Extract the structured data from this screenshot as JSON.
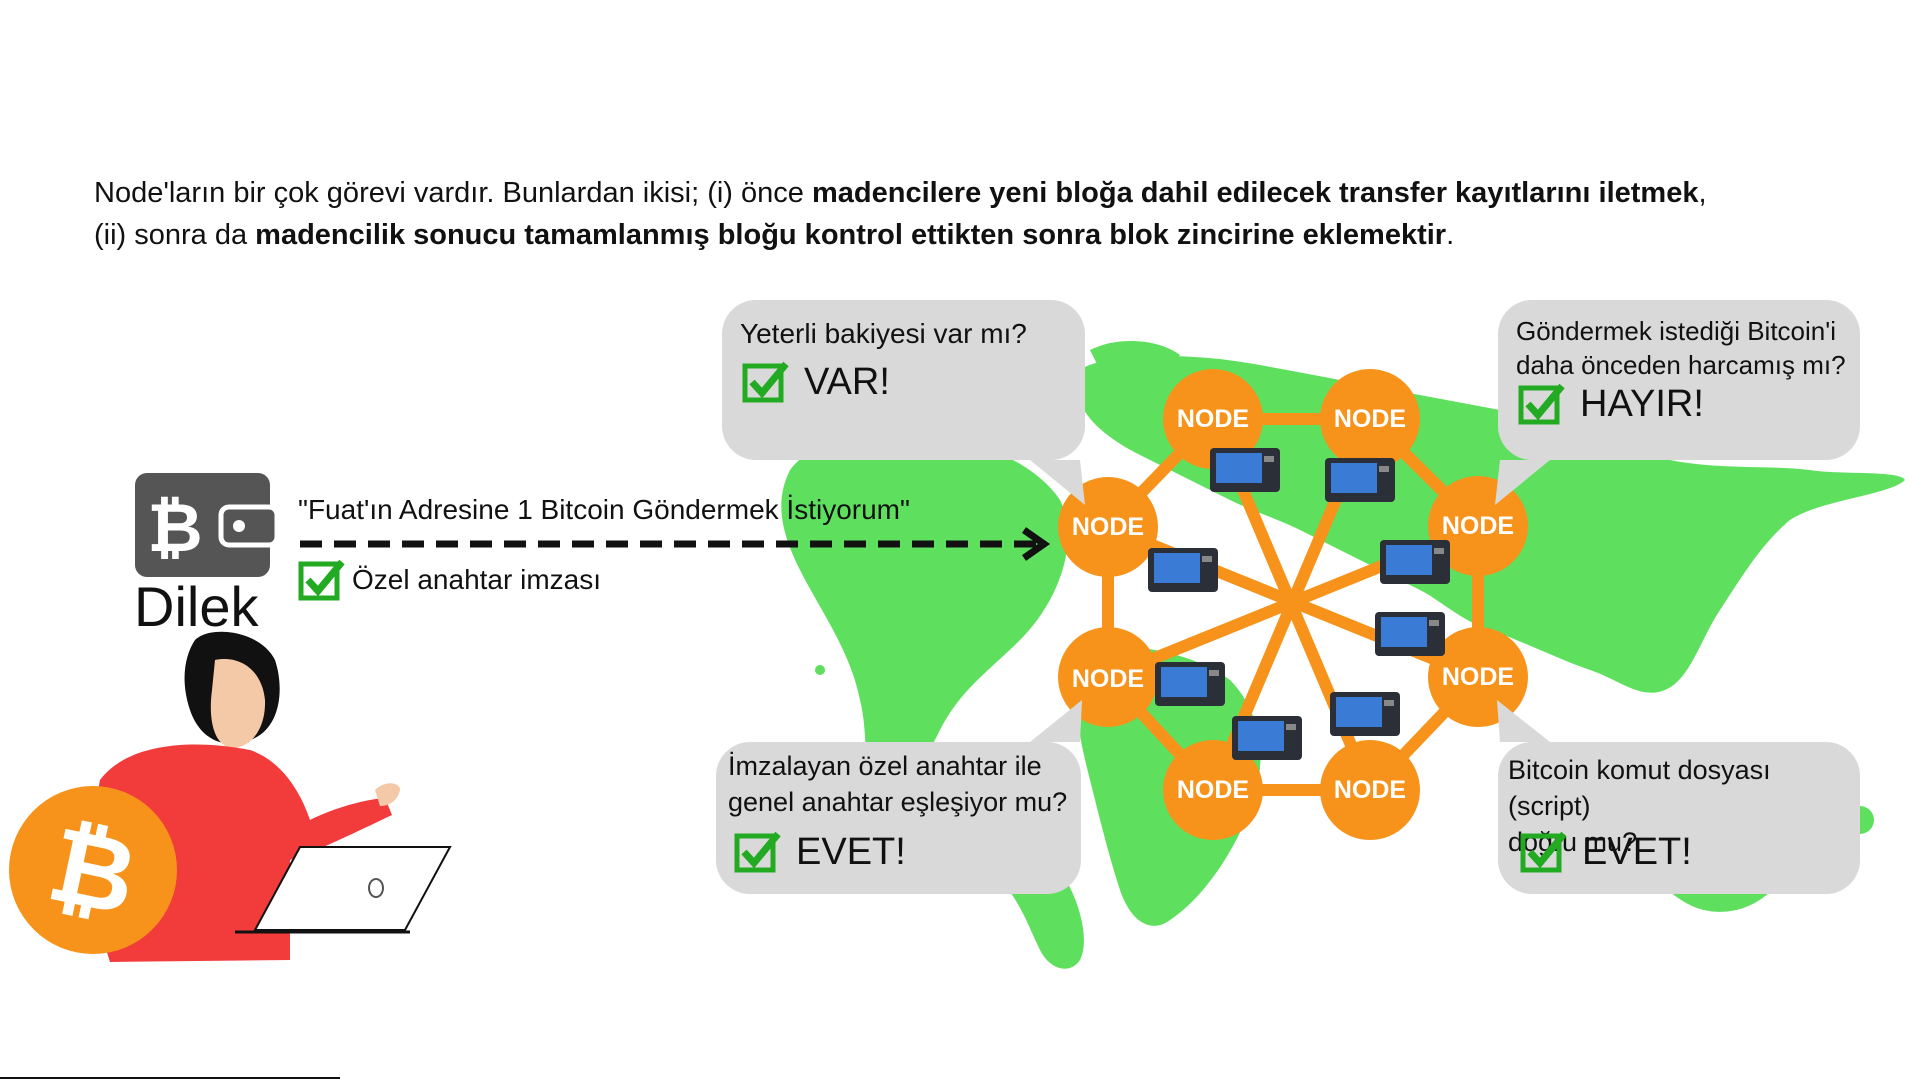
{
  "intro": {
    "p1": "Node'ların bir çok görevi vardır. Bunlardan ikisi; (i) önce ",
    "b1": "madencilere yeni bloğa dahil edilecek transfer kayıtlarını iletmek",
    "p2": ",",
    "p3": "(ii) sonra da ",
    "b2": "madencilik sonucu tamamlanmış bloğu kontrol ettikten sonra blok zincirine eklemektir",
    "p4": "."
  },
  "sender": {
    "name": "Dilek",
    "message": "\"Fuat'ın Adresine 1 Bitcoin Göndermek İstiyorum\"",
    "signature": "Özel anahtar imzası"
  },
  "checks": [
    {
      "question_lines": [
        "Yeterli bakiyesi var mı?"
      ],
      "answer": "VAR!"
    },
    {
      "question_lines": [
        "Göndermek istediği Bitcoin'i",
        "daha önceden harcamış mı?"
      ],
      "answer": "HAYIR!"
    },
    {
      "question_lines": [
        "İmzalayan özel anahtar ile",
        "genel anahtar eşleşiyor mu?"
      ],
      "answer": "EVET!"
    },
    {
      "question_lines": [
        "Bitcoin komut dosyası (script)",
        "doğru mu?"
      ],
      "answer": "EVET!"
    }
  ],
  "node_label": "NODE",
  "colors": {
    "node": "#f7931a",
    "map": "#5ee05e",
    "bubble": "#d9d9d9",
    "check": "#22aa22",
    "person_shirt": "#f23b3b",
    "wallet": "#555555"
  },
  "icons": [
    "wallet-bitcoin-icon",
    "bitcoin-coin-icon",
    "checkmark-icon",
    "miner-device-icon",
    "laptop-icon",
    "world-map"
  ]
}
